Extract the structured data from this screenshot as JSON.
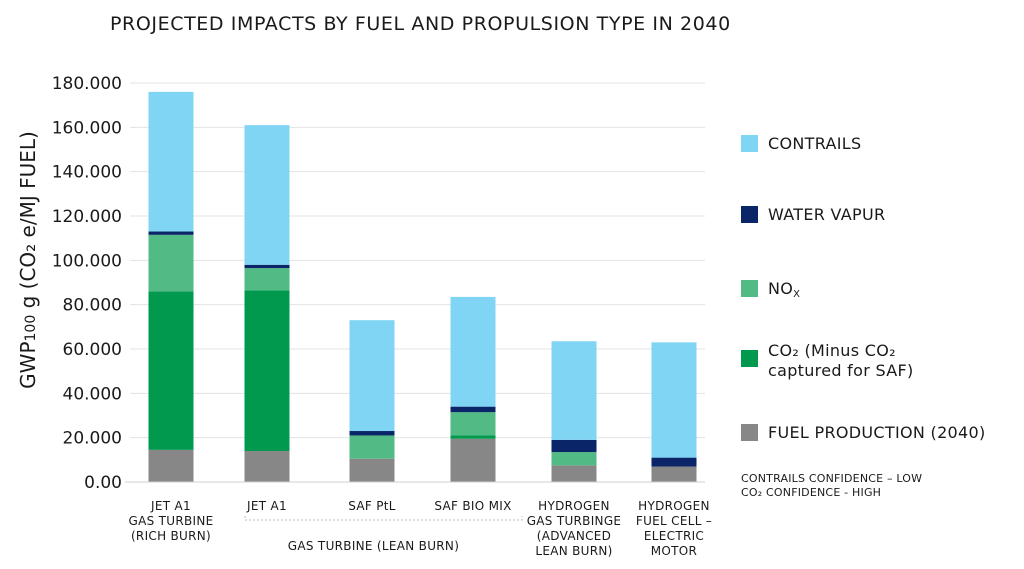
{
  "chart_data": {
    "type": "bar",
    "stacked": true,
    "title": "PROJECTED IMPACTS BY FUEL AND PROPULSION TYPE IN 2040",
    "ylabel": "GWP100 g (CO2 e/MJ FUEL)",
    "ylabel_parts": {
      "main": "GWP",
      "sub": "100",
      "rest": " g (CO₂ e/MJ FUEL)"
    },
    "ylim": [
      0,
      180000
    ],
    "yticks": [
      0,
      20000,
      40000,
      60000,
      80000,
      100000,
      120000,
      140000,
      160000,
      180000
    ],
    "ytick_labels": [
      "0.00",
      "20.000",
      "40.000",
      "60.000",
      "80.000",
      "100.000",
      "120.000",
      "140.000",
      "160.000",
      "180.000"
    ],
    "grid": true,
    "legend_position": "right",
    "categories": [
      [
        "JET A1",
        "GAS TURBINE",
        "(RICH BURN)"
      ],
      [
        "JET A1"
      ],
      [
        "SAF PtL"
      ],
      [
        "SAF BIO MIX"
      ],
      [
        "HYDROGEN",
        "GAS TURBINGE",
        "(ADVANCED",
        "LEAN BURN)"
      ],
      [
        "HYDROGEN",
        "FUEL CELL –",
        "ELECTRIC",
        "MOTOR"
      ]
    ],
    "group_label": {
      "text": "GAS TURBINE (LEAN BURN)",
      "spans": [
        1,
        3
      ]
    },
    "series": [
      {
        "name": "FUEL PRODUCTION (2040)",
        "color": "#878787",
        "values": [
          14500,
          14000,
          10500,
          19500,
          7500,
          7000
        ]
      },
      {
        "name": "CO₂ (Minus CO₂ captured for SAF)",
        "color": "#00994d",
        "values": [
          71500,
          72500,
          0,
          1500,
          0,
          0
        ]
      },
      {
        "name": "NOx",
        "color": "#52ba84",
        "values": [
          25500,
          10000,
          10500,
          10500,
          6000,
          0
        ]
      },
      {
        "name": "WATER VAPUR",
        "color": "#0a2668",
        "values": [
          1500,
          1500,
          2000,
          2500,
          5500,
          4000
        ]
      },
      {
        "name": "CONTRAILS",
        "color": "#80d5f5",
        "values": [
          63000,
          63000,
          50000,
          49500,
          44500,
          52000
        ]
      }
    ],
    "legend": [
      {
        "lines": [
          "CONTRAILS"
        ],
        "color": "#80d5f5"
      },
      {
        "lines": [
          "WATER VAPUR"
        ],
        "color": "#0a2668"
      },
      {
        "lines": [
          "NO",
          "X"
        ],
        "subscript": true,
        "color": "#52ba84"
      },
      {
        "lines": [
          "CO₂ (Minus CO₂",
          "captured for SAF)"
        ],
        "color": "#00994d"
      },
      {
        "lines": [
          "FUEL PRODUCTION (2040)"
        ],
        "color": "#878787"
      }
    ],
    "notes": [
      "CONTRAILS CONFIDENCE – LOW",
      "CO₂ CONFIDENCE - HIGH"
    ]
  }
}
